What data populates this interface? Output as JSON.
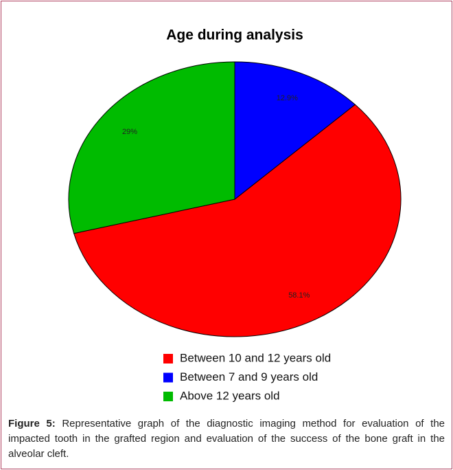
{
  "chart_data": {
    "type": "pie",
    "title": "Age during analysis",
    "categories": [
      "Between 10 and 12 years old",
      "Between 7 and 9 years old",
      "Above 12 years old"
    ],
    "values": [
      58.1,
      12.9,
      29
    ],
    "value_labels": [
      "58.1%",
      "12.9%",
      "29%"
    ],
    "colors": [
      "#ff0000",
      "#0000ff",
      "#00bb00"
    ],
    "legend": "bottom"
  },
  "caption": {
    "label": "Figure 5:",
    "text": "Representative graph of the diagnostic imaging method for evaluation of the impacted tooth in the grafted region and evaluation of the success of the bone graft in the alveolar cleft."
  }
}
